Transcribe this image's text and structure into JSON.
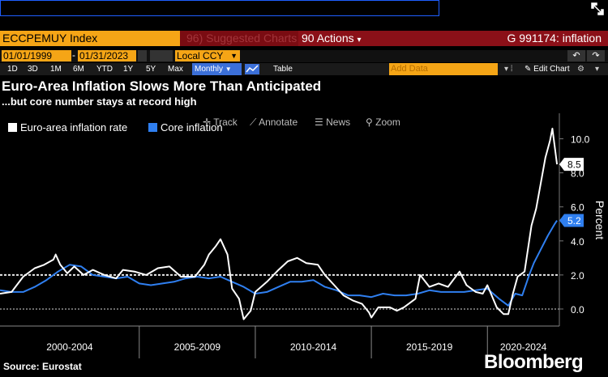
{
  "command_line": {
    "value": ""
  },
  "header": {
    "security": "ECCPEMUY Index",
    "suggested": "96) Suggested Charts",
    "actions": "90 Actions",
    "actions_arrow": "▾",
    "gfield": "G 991174: inflation"
  },
  "controls": {
    "start_date": "01/01/1999",
    "end_date": "01/31/2023",
    "currency": "Local CCY",
    "periods": [
      "1D",
      "3D",
      "1M",
      "6M",
      "YTD",
      "1Y",
      "5Y",
      "Max"
    ],
    "frequency": "Monthly",
    "table": "Table",
    "add_data": "Add Data",
    "edit_chart": "Edit Chart"
  },
  "chart_tools": {
    "track": "Track",
    "annotate": "Annotate",
    "news": "News",
    "zoom": "Zoom"
  },
  "colors": {
    "euro": "#ffffff",
    "core": "#2f7ff0",
    "accent": "#f5a516",
    "bar_red": "#8b1018"
  },
  "chart_data": {
    "type": "line",
    "title": "Euro-Area Inflation Slows More Than Anticipated",
    "subtitle": "...but core number stays at record high",
    "ylabel": "Percent",
    "ylim": [
      -1.0,
      11.5
    ],
    "yticks": [
      "10.0",
      "8.0",
      "6.0",
      "4.0",
      "2.0",
      "0.0"
    ],
    "ytick_values": [
      10,
      8,
      6,
      4,
      2,
      0
    ],
    "xlim": [
      1999.0,
      2023.1
    ],
    "x_groups": [
      "2000-2004",
      "2005-2009",
      "2010-2014",
      "2015-2019",
      "2020-2024"
    ],
    "x_group_bounds": [
      1999,
      2005,
      2010,
      2015,
      2020,
      2023.1
    ],
    "reference_line": 2.0,
    "series": [
      {
        "name": "Euro-area inflation rate",
        "color": "#ffffff",
        "last_label": "8.5",
        "x": [
          1999.0,
          1999.5,
          2000.0,
          2000.5,
          2000.9,
          2001.3,
          2001.4,
          2001.6,
          2001.9,
          2002.2,
          2002.6,
          2003.0,
          2003.5,
          2004.0,
          2004.3,
          2004.8,
          2005.3,
          2005.8,
          2006.3,
          2006.8,
          2007.0,
          2007.4,
          2007.8,
          2008.0,
          2008.3,
          2008.5,
          2008.8,
          2009.0,
          2009.3,
          2009.5,
          2009.8,
          2010.0,
          2010.5,
          2011.0,
          2011.4,
          2011.8,
          2012.2,
          2012.7,
          2013.0,
          2013.4,
          2013.8,
          2014.2,
          2014.6,
          2014.9,
          2015.0,
          2015.3,
          2015.8,
          2016.1,
          2016.4,
          2016.9,
          2017.1,
          2017.5,
          2017.9,
          2018.3,
          2018.8,
          2019.1,
          2019.5,
          2019.8,
          2020.0,
          2020.4,
          2020.7,
          2020.9,
          2021.1,
          2021.3,
          2021.6,
          2021.9,
          2022.1,
          2022.3,
          2022.5,
          2022.7,
          2022.8,
          2023.0
        ],
        "y": [
          0.9,
          1.0,
          1.9,
          2.4,
          2.6,
          2.9,
          3.2,
          2.6,
          2.1,
          2.5,
          2.0,
          2.3,
          2.0,
          1.8,
          2.3,
          2.2,
          2.0,
          2.4,
          2.5,
          1.9,
          1.9,
          1.9,
          2.6,
          3.2,
          3.7,
          4.1,
          3.2,
          1.2,
          0.6,
          -0.6,
          -0.1,
          1.0,
          1.6,
          2.3,
          2.8,
          3.0,
          2.7,
          2.6,
          2.0,
          1.4,
          0.8,
          0.5,
          0.3,
          -0.2,
          -0.5,
          0.1,
          0.1,
          -0.1,
          0.1,
          0.6,
          2.0,
          1.3,
          1.5,
          1.3,
          2.2,
          1.4,
          1.0,
          0.9,
          1.4,
          0.1,
          -0.3,
          -0.3,
          0.9,
          1.9,
          2.2,
          4.9,
          5.9,
          7.4,
          8.9,
          9.9,
          10.6,
          8.5
        ]
      },
      {
        "name": "Core inflation",
        "color": "#2f7ff0",
        "last_label": "5.2",
        "x": [
          1999.0,
          1999.5,
          2000.0,
          2000.5,
          2001.0,
          2001.5,
          2002.0,
          2002.5,
          2003.0,
          2003.5,
          2004.0,
          2004.5,
          2005.0,
          2005.5,
          2006.0,
          2006.5,
          2007.0,
          2007.5,
          2008.0,
          2008.5,
          2009.0,
          2009.5,
          2010.0,
          2010.5,
          2011.0,
          2011.5,
          2012.0,
          2012.5,
          2013.0,
          2013.5,
          2014.0,
          2014.5,
          2015.0,
          2015.5,
          2016.0,
          2016.5,
          2017.0,
          2017.5,
          2018.0,
          2018.5,
          2019.0,
          2019.5,
          2020.0,
          2020.5,
          2020.9,
          2021.2,
          2021.5,
          2021.8,
          2022.0,
          2022.3,
          2022.6,
          2022.9,
          2023.0
        ],
        "y": [
          1.1,
          1.0,
          1.0,
          1.3,
          1.7,
          2.2,
          2.6,
          2.5,
          2.0,
          1.9,
          1.8,
          1.9,
          1.5,
          1.4,
          1.5,
          1.6,
          1.8,
          1.9,
          1.8,
          1.9,
          1.6,
          1.3,
          0.9,
          1.0,
          1.3,
          1.6,
          1.6,
          1.7,
          1.3,
          1.1,
          0.8,
          0.8,
          0.7,
          0.9,
          0.8,
          0.8,
          0.9,
          1.1,
          1.0,
          1.0,
          1.0,
          1.1,
          1.2,
          0.6,
          0.2,
          0.9,
          0.8,
          2.0,
          2.7,
          3.5,
          4.3,
          5.0,
          5.2
        ]
      }
    ]
  }
}
